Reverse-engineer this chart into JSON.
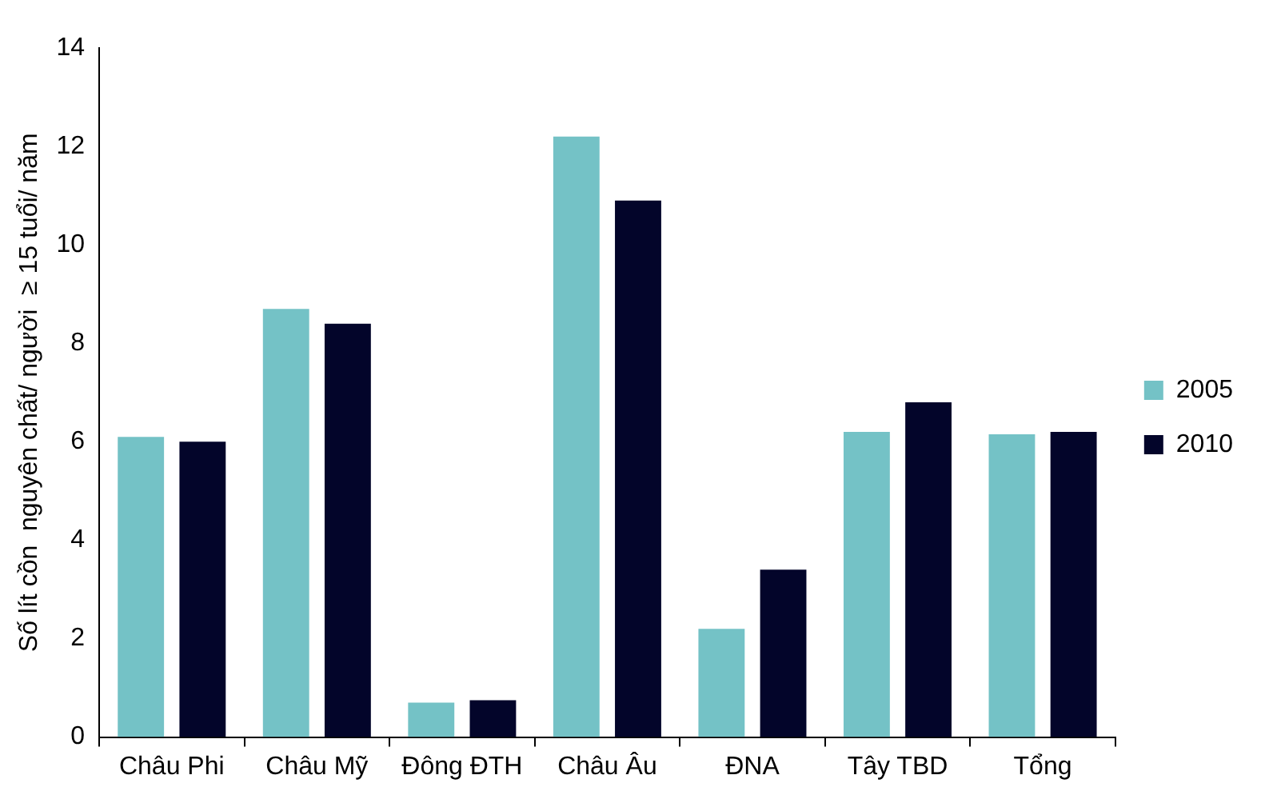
{
  "chart_data": {
    "type": "bar",
    "ylabel": "Số lít cồn  nguyên chất/ người  ≥ 15 tuổi/ năm",
    "categories": [
      "Châu Phi",
      "Châu Mỹ",
      "Đông ĐTH",
      "Châu Âu",
      "ĐNA",
      "Tây TBD",
      "Tổng"
    ],
    "series": [
      {
        "name": "2005",
        "color": "#74c2c6",
        "values": [
          6.1,
          8.7,
          0.7,
          12.2,
          2.2,
          6.2,
          6.15
        ]
      },
      {
        "name": "2010",
        "color": "#03052a",
        "values": [
          6.0,
          8.4,
          0.75,
          10.9,
          3.4,
          6.8,
          6.2
        ]
      }
    ],
    "ylim": [
      0,
      14
    ],
    "yticks": [
      0,
      2,
      4,
      6,
      8,
      10,
      12,
      14
    ],
    "legend": "right"
  }
}
